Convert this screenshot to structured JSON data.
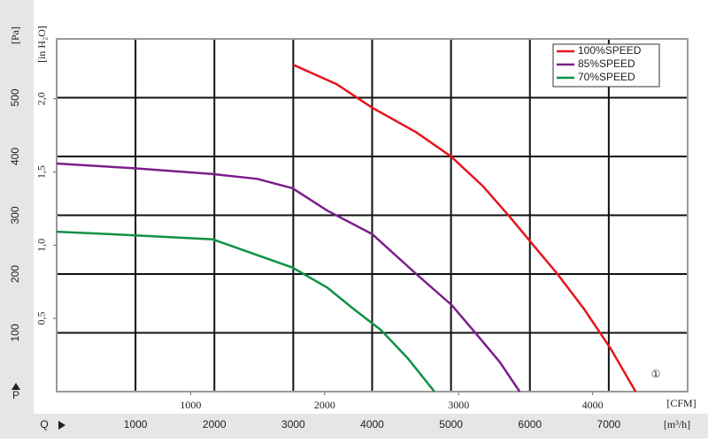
{
  "chart_data": {
    "type": "line",
    "series": [
      {
        "name": "100%SPEED",
        "color": "#e8141c",
        "x": [
          3000,
          3550,
          4000,
          4560,
          5000,
          5400,
          5740,
          6020,
          6350,
          6690,
          7030,
          7340
        ],
        "values": [
          556,
          523,
          483,
          441,
          400,
          350,
          298,
          253,
          200,
          140,
          72,
          0
        ]
      },
      {
        "name": "85%SPEED",
        "color": "#7b1e8c",
        "x": [
          0,
          970,
          1980,
          2540,
          2990,
          3430,
          4000,
          4560,
          5010,
          5340,
          5620,
          5870
        ],
        "values": [
          388,
          380,
          370,
          362,
          346,
          308,
          268,
          200,
          147,
          95,
          50,
          0
        ]
      },
      {
        "name": "70%SPEED",
        "color": "#0e9246",
        "x": [
          0,
          970,
          1980,
          2420,
          2990,
          3430,
          3770,
          4110,
          4450,
          4790
        ],
        "values": [
          272,
          266,
          259,
          238,
          211,
          177,
          140,
          105,
          57,
          0
        ]
      }
    ],
    "xlim": [
      0,
      8000
    ],
    "xticks": [
      1000,
      2000,
      3000,
      4000,
      5000,
      6000,
      7000
    ],
    "ylim": [
      0,
      600
    ],
    "yticks": [
      100,
      200,
      300,
      400,
      500
    ],
    "x2lim": [
      0,
      4709
    ],
    "x2ticks": [
      1000,
      2000,
      3000,
      4000
    ],
    "y2lim": [
      0,
      2.409
    ],
    "y2ticks": [
      {
        "value": 0.5,
        "label": "0,5"
      },
      {
        "value": 1.0,
        "label": "1,0"
      },
      {
        "value": 1.5,
        "label": "1,5"
      },
      {
        "value": 2.0,
        "label": "2,0"
      }
    ],
    "y_label": "[Pa]",
    "y2_label": "[in H₂O]",
    "x_label": "[m³/h]",
    "x2_label": "[CFM]",
    "y_symbol": "P",
    "x_symbol": "Q",
    "annotation": "①",
    "grid": true,
    "legend": "top-right"
  }
}
